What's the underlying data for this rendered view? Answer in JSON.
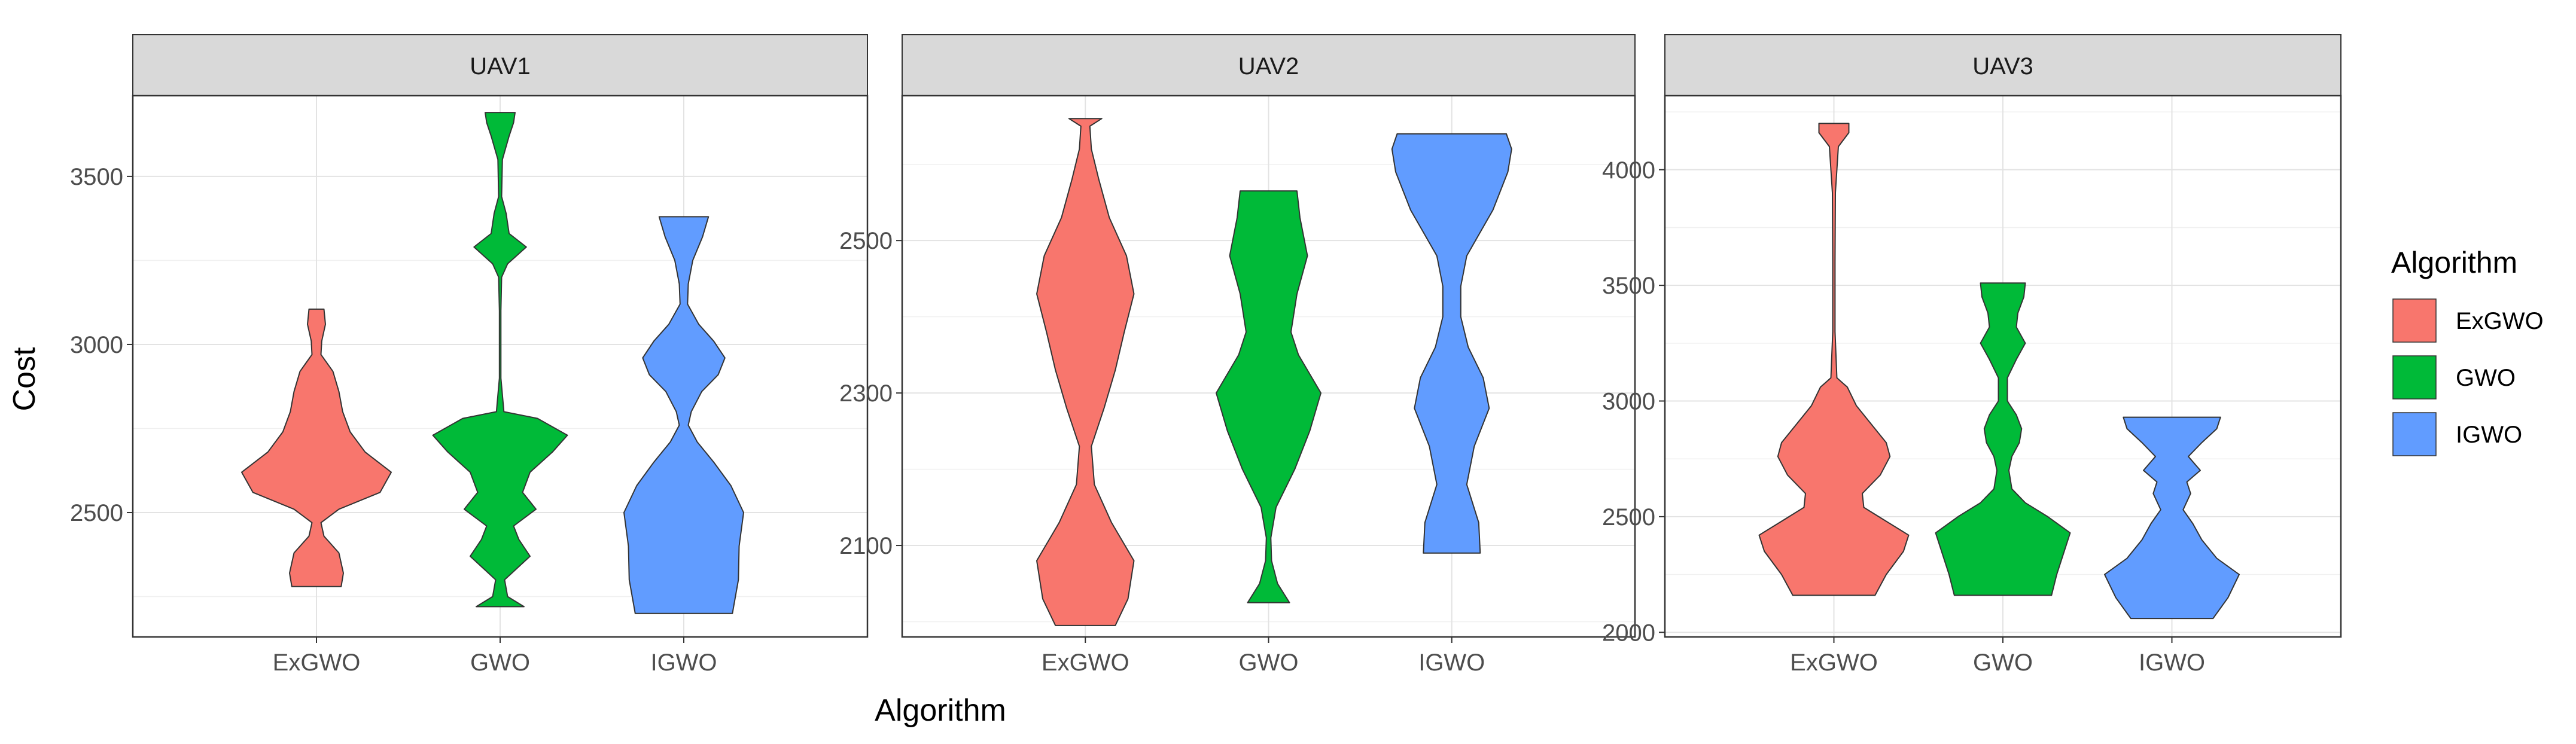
{
  "chart_data": {
    "type": "violin",
    "xlabel": "Algorithm",
    "ylabel": "Cost",
    "legend": {
      "title": "Algorithm",
      "placement": "right",
      "entries": [
        {
          "label": "ExGWO",
          "color": "#F8766D"
        },
        {
          "label": "GWO",
          "color": "#00BA38"
        },
        {
          "label": "IGWO",
          "color": "#619CFF"
        }
      ]
    },
    "categories": [
      "ExGWO",
      "GWO",
      "IGWO"
    ],
    "grid": true,
    "panels": [
      {
        "strip_label": "UAV1",
        "ylim": [
          2130,
          3740
        ],
        "yticks": [
          2500,
          3000,
          3500
        ],
        "violins": [
          {
            "name": "ExGWO",
            "profile": [
              [
                2280,
                0.33
              ],
              [
                2320,
                0.36
              ],
              [
                2380,
                0.3
              ],
              [
                2430,
                0.1
              ],
              [
                2470,
                0.06
              ],
              [
                2510,
                0.3
              ],
              [
                2560,
                0.85
              ],
              [
                2620,
                1.0
              ],
              [
                2680,
                0.65
              ],
              [
                2740,
                0.45
              ],
              [
                2800,
                0.35
              ],
              [
                2860,
                0.3
              ],
              [
                2920,
                0.22
              ],
              [
                2970,
                0.06
              ],
              [
                3010,
                0.07
              ],
              [
                3060,
                0.12
              ],
              [
                3105,
                0.1
              ]
            ]
          },
          {
            "name": "GWO",
            "profile": [
              [
                2220,
                0.32
              ],
              [
                2250,
                0.1
              ],
              [
                2300,
                0.06
              ],
              [
                2370,
                0.4
              ],
              [
                2420,
                0.25
              ],
              [
                2460,
                0.18
              ],
              [
                2510,
                0.48
              ],
              [
                2560,
                0.3
              ],
              [
                2620,
                0.4
              ],
              [
                2680,
                0.7
              ],
              [
                2730,
                0.9
              ],
              [
                2780,
                0.5
              ],
              [
                2800,
                0.05
              ],
              [
                2900,
                0.01
              ],
              [
                3100,
                0.01
              ],
              [
                3200,
                0.02
              ],
              [
                3240,
                0.1
              ],
              [
                3290,
                0.35
              ],
              [
                3330,
                0.12
              ],
              [
                3390,
                0.08
              ],
              [
                3440,
                0.02
              ],
              [
                3550,
                0.03
              ],
              [
                3620,
                0.12
              ],
              [
                3660,
                0.18
              ],
              [
                3690,
                0.2
              ]
            ]
          },
          {
            "name": "IGWO",
            "profile": [
              [
                2200,
                0.65
              ],
              [
                2300,
                0.73
              ],
              [
                2400,
                0.74
              ],
              [
                2500,
                0.8
              ],
              [
                2580,
                0.63
              ],
              [
                2650,
                0.4
              ],
              [
                2710,
                0.18
              ],
              [
                2760,
                0.06
              ],
              [
                2800,
                0.1
              ],
              [
                2860,
                0.24
              ],
              [
                2910,
                0.46
              ],
              [
                2960,
                0.55
              ],
              [
                3010,
                0.4
              ],
              [
                3060,
                0.2
              ],
              [
                3120,
                0.05
              ],
              [
                3180,
                0.06
              ],
              [
                3250,
                0.12
              ],
              [
                3320,
                0.25
              ],
              [
                3380,
                0.33
              ]
            ]
          }
        ]
      },
      {
        "strip_label": "UAV2",
        "ylim": [
          1980,
          2690
        ],
        "yticks": [
          2100,
          2300,
          2500
        ],
        "violins": [
          {
            "name": "ExGWO",
            "profile": [
              [
                1995,
                0.4
              ],
              [
                2030,
                0.57
              ],
              [
                2080,
                0.65
              ],
              [
                2130,
                0.35
              ],
              [
                2180,
                0.12
              ],
              [
                2230,
                0.08
              ],
              [
                2280,
                0.25
              ],
              [
                2330,
                0.4
              ],
              [
                2380,
                0.52
              ],
              [
                2430,
                0.65
              ],
              [
                2480,
                0.55
              ],
              [
                2530,
                0.32
              ],
              [
                2580,
                0.18
              ],
              [
                2620,
                0.08
              ],
              [
                2650,
                0.06
              ],
              [
                2660,
                0.22
              ]
            ]
          },
          {
            "name": "GWO",
            "profile": [
              [
                2025,
                0.28
              ],
              [
                2050,
                0.12
              ],
              [
                2080,
                0.04
              ],
              [
                2110,
                0.03
              ],
              [
                2150,
                0.1
              ],
              [
                2200,
                0.35
              ],
              [
                2250,
                0.55
              ],
              [
                2300,
                0.7
              ],
              [
                2350,
                0.4
              ],
              [
                2380,
                0.3
              ],
              [
                2430,
                0.38
              ],
              [
                2480,
                0.52
              ],
              [
                2530,
                0.42
              ],
              [
                2565,
                0.38
              ]
            ]
          },
          {
            "name": "IGWO",
            "profile": [
              [
                2090,
                0.38
              ],
              [
                2130,
                0.36
              ],
              [
                2180,
                0.2
              ],
              [
                2230,
                0.3
              ],
              [
                2280,
                0.5
              ],
              [
                2320,
                0.42
              ],
              [
                2360,
                0.22
              ],
              [
                2400,
                0.12
              ],
              [
                2440,
                0.12
              ],
              [
                2480,
                0.2
              ],
              [
                2540,
                0.55
              ],
              [
                2590,
                0.75
              ],
              [
                2620,
                0.8
              ],
              [
                2640,
                0.73
              ]
            ]
          }
        ]
      },
      {
        "strip_label": "UAV3",
        "ylim": [
          1980,
          4320
        ],
        "yticks": [
          2000,
          2500,
          3000,
          3500,
          4000
        ],
        "violins": [
          {
            "name": "ExGWO",
            "profile": [
              [
                2160,
                0.55
              ],
              [
                2250,
                0.7
              ],
              [
                2350,
                0.93
              ],
              [
                2420,
                1.0
              ],
              [
                2480,
                0.7
              ],
              [
                2540,
                0.4
              ],
              [
                2600,
                0.38
              ],
              [
                2680,
                0.62
              ],
              [
                2760,
                0.75
              ],
              [
                2820,
                0.7
              ],
              [
                2900,
                0.5
              ],
              [
                2980,
                0.3
              ],
              [
                3060,
                0.18
              ],
              [
                3100,
                0.04
              ],
              [
                3300,
                0.015
              ],
              [
                3600,
                0.015
              ],
              [
                3900,
                0.02
              ],
              [
                4100,
                0.06
              ],
              [
                4160,
                0.2
              ],
              [
                4200,
                0.2
              ]
            ]
          },
          {
            "name": "GWO",
            "profile": [
              [
                2160,
                0.65
              ],
              [
                2250,
                0.72
              ],
              [
                2350,
                0.82
              ],
              [
                2430,
                0.9
              ],
              [
                2500,
                0.6
              ],
              [
                2560,
                0.3
              ],
              [
                2620,
                0.12
              ],
              [
                2700,
                0.08
              ],
              [
                2760,
                0.12
              ],
              [
                2820,
                0.22
              ],
              [
                2880,
                0.25
              ],
              [
                2940,
                0.18
              ],
              [
                3000,
                0.06
              ],
              [
                3100,
                0.06
              ],
              [
                3180,
                0.18
              ],
              [
                3250,
                0.3
              ],
              [
                3320,
                0.18
              ],
              [
                3380,
                0.2
              ],
              [
                3450,
                0.28
              ],
              [
                3510,
                0.3
              ]
            ]
          },
          {
            "name": "IGWO",
            "profile": [
              [
                2060,
                0.55
              ],
              [
                2150,
                0.75
              ],
              [
                2250,
                0.9
              ],
              [
                2320,
                0.6
              ],
              [
                2400,
                0.4
              ],
              [
                2470,
                0.28
              ],
              [
                2530,
                0.15
              ],
              [
                2600,
                0.25
              ],
              [
                2650,
                0.2
              ],
              [
                2700,
                0.38
              ],
              [
                2760,
                0.22
              ],
              [
                2820,
                0.4
              ],
              [
                2880,
                0.6
              ],
              [
                2930,
                0.65
              ]
            ]
          }
        ]
      }
    ]
  }
}
